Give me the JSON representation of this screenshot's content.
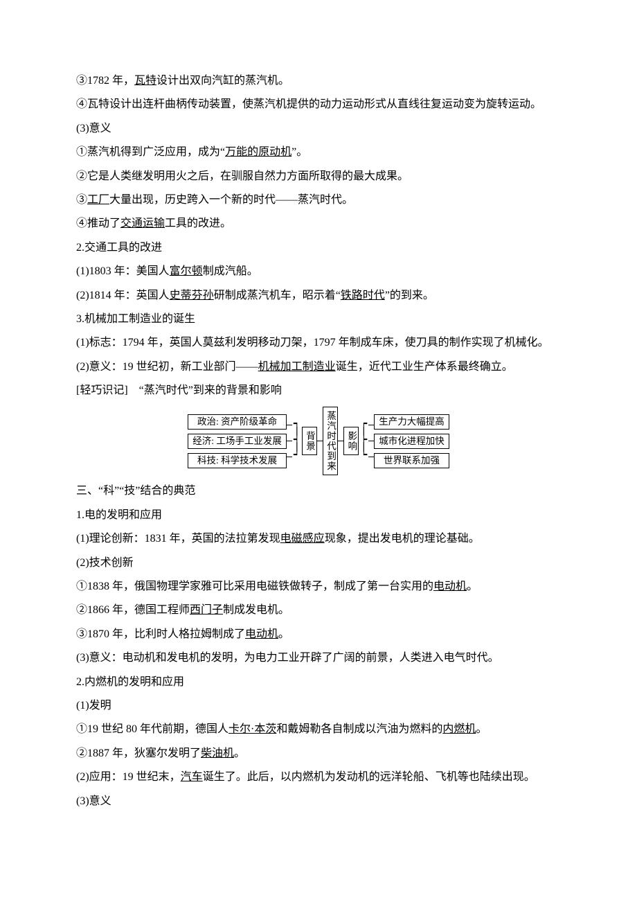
{
  "p": [
    {
      "t": "③1782 年，",
      "u": "瓦特",
      "t2": "设计出双向汽缸的蒸汽机。"
    },
    {
      "t": "④瓦特设计出连杆曲柄传动装置，使蒸汽机提供的动力运动形式从直线往复运动变为旋转运动。"
    },
    {
      "t": "(3)意义"
    },
    {
      "t": "①蒸汽机得到广泛应用，成为“",
      "u": "万能的原动机",
      "t2": "”。"
    },
    {
      "t": "②它是人类继发明用火之后，在驯服自然力方面所取得的最大成果。"
    },
    {
      "t": "③",
      "u": "工厂",
      "t2": "大量出现，历史跨入一个新的时代——蒸汽时代。"
    },
    {
      "t": "④推动了",
      "u": "交通运输",
      "t2": "工具的改进。"
    },
    {
      "t": "2.交通工具的改进"
    },
    {
      "t": "(1)1803 年：美国人",
      "u": "富尔顿",
      "t2": "制成汽船。"
    },
    {
      "t": "(2)1814 年：英国人",
      "u": "史蒂芬孙",
      "t2": "研制成蒸汽机车，昭示着“",
      "u2": "铁路时代",
      "t3": "”的到来。"
    },
    {
      "t": "3.机械加工制造业的诞生"
    },
    {
      "t": "(1)标志：1794 年，英国人莫兹利发明移动刀架，1797 年制成车床，使刀具的制作实现了机械化。"
    },
    {
      "t": "(2)意义：19 世纪初，新工业部门——",
      "u": "机械加工制造业",
      "t2": "诞生，近代工业生产体系最终确立。"
    },
    {
      "t": "[轻巧识记]　“蒸汽时代”到来的背景和影响"
    }
  ],
  "diagram": {
    "left": [
      "政治: 资产阶级革命",
      "经济: 工场手工业发展",
      "科技: 科学技术发展"
    ],
    "mid1": "背景",
    "center": "蒸汽时代到来",
    "mid2": "影响",
    "right": [
      "生产力大幅提高",
      "城市化进程加快",
      "世界联系加强"
    ]
  },
  "p2": [
    {
      "t": "三、“科”“技”结合的典范"
    },
    {
      "t": "1.电的发明和应用"
    },
    {
      "t": "(1)理论创新：1831 年，英国的法拉第发现",
      "u": "电磁感应",
      "t2": "现象，提出发电机的理论基础。"
    },
    {
      "t": "(2)技术创新"
    },
    {
      "t": "①1838 年，俄国物理学家雅可比采用电磁铁做转子，制成了第一台实用的",
      "u": "电动机",
      "t2": "。"
    },
    {
      "t": "②1866 年，德国工程师",
      "u": "西门子",
      "t2": "制成发电机。"
    },
    {
      "t": "③1870 年，比利时人格拉姆制成了",
      "u": "电动机",
      "t2": "。"
    },
    {
      "t": "(3)意义：电动机和发电机的发明，为电力工业开辟了广阔的前景，人类进入电气时代。"
    },
    {
      "t": "2.内燃机的发明和应用"
    },
    {
      "t": "(1)发明"
    },
    {
      "t": "①19 世纪 80 年代前期，德国人",
      "u": "卡尔·本茨",
      "t2": "和戴姆勒各自制成以汽油为燃料的",
      "u2": "内燃机",
      "t3": "。"
    },
    {
      "t": "②1887 年，狄塞尔发明了",
      "u": "柴油机",
      "t2": "。"
    },
    {
      "t": "(2)应用：19 世纪末，",
      "u": "汽车",
      "t2": "诞生了。此后，以内燃机为发动机的远洋轮船、飞机等也陆续出现。"
    },
    {
      "t": "(3)意义"
    }
  ]
}
